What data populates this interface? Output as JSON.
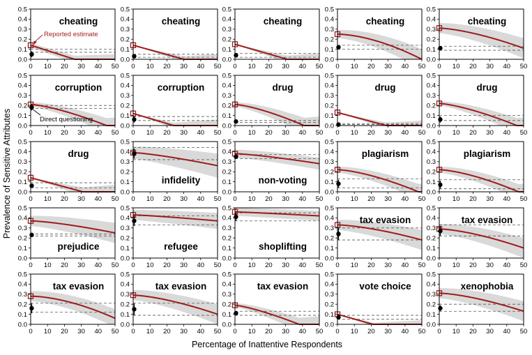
{
  "figure": {
    "xlabel": "Percentage of Inattentive Respondents",
    "ylabel": "Prevalence of Sensitive Attributes"
  },
  "colors": {
    "curve": "#9e1b1b",
    "band": "#d9d9d9",
    "dashed": "#555555",
    "direct": "#000000"
  },
  "chart_data": {
    "type": "line",
    "layout": "grid 5 rows x 5 columns",
    "x_axis": {
      "range": [
        0,
        50
      ],
      "ticks": [
        0,
        10,
        20,
        30,
        40,
        50
      ]
    },
    "y_axis": {
      "range": [
        0,
        0.5
      ],
      "ticks": [
        "0.0",
        "0.1",
        "0.2",
        "0.3",
        "0.4",
        "0.5"
      ]
    },
    "annotations": {
      "reported": "Reported estimate",
      "direct": "Direct questioning"
    },
    "panels": [
      {
        "title": "cheating",
        "title_pos": "top",
        "reported": 0.14,
        "zero_at": 26,
        "curve_exp": 1.0,
        "end_value": 0.0,
        "band_lo": 0.02,
        "band_hi": 0.05,
        "direct": 0.05,
        "direct_err": 0.03,
        "dashed": [
          0.1,
          0.07
        ]
      },
      {
        "title": "cheating",
        "title_pos": "top",
        "reported": 0.14,
        "zero_at": 30,
        "curve_exp": 1.0,
        "end_value": 0.0,
        "band_lo": 0.0,
        "band_hi": 0.05,
        "direct": 0.03,
        "direct_err": 0.01,
        "dashed": [
          0.05,
          0.02
        ]
      },
      {
        "title": "cheating",
        "title_pos": "top",
        "reported": 0.15,
        "zero_at": 31,
        "curve_exp": 1.0,
        "end_value": 0.0,
        "band_lo": 0.0,
        "band_hi": 0.06,
        "direct": 0.04,
        "direct_err": 0.01,
        "dashed": [
          0.06,
          0.02
        ]
      },
      {
        "title": "cheating",
        "title_pos": "top",
        "reported": 0.25,
        "zero_at": null,
        "curve_exp": 1.7,
        "end_value": 0.0,
        "band_lo": 0.04,
        "band_hi": 0.1,
        "direct": 0.12,
        "direct_err": 0.02,
        "dashed": [
          0.14,
          0.1
        ]
      },
      {
        "title": "cheating",
        "title_pos": "top",
        "reported": 0.31,
        "zero_at": null,
        "curve_exp": 1.5,
        "end_value": 0.11,
        "band_lo": 0.05,
        "band_hi": 0.1,
        "direct": 0.11,
        "direct_err": 0.02,
        "dashed": [
          0.13,
          0.09
        ]
      },
      {
        "title": "corruption",
        "title_pos": "top",
        "reported": 0.21,
        "zero_at": 45,
        "curve_exp": 1.4,
        "end_value": 0.0,
        "band_lo": 0.02,
        "band_hi": 0.08,
        "direct": 0.18,
        "direct_err": 0.03,
        "dashed": [
          0.2,
          0.17
        ]
      },
      {
        "title": "corruption",
        "title_pos": "top",
        "reported": 0.12,
        "zero_at": 24,
        "curve_exp": 1.0,
        "end_value": 0.0,
        "band_lo": 0.0,
        "band_hi": 0.06,
        "direct": 0.06,
        "direct_err": 0.03,
        "dashed": [
          0.09,
          0.05
        ]
      },
      {
        "title": "drug",
        "title_pos": "top",
        "reported": 0.21,
        "zero_at": 41,
        "curve_exp": 1.4,
        "end_value": 0.0,
        "band_lo": 0.02,
        "band_hi": 0.09,
        "direct": 0.04,
        "direct_err": 0.01,
        "dashed": [
          0.05,
          0.03
        ]
      },
      {
        "title": "drug",
        "title_pos": "top",
        "reported": 0.13,
        "zero_at": 29,
        "curve_exp": 1.0,
        "end_value": 0.0,
        "band_lo": 0.0,
        "band_hi": 0.05,
        "direct": 0.01,
        "direct_err": 0.01,
        "dashed": [
          0.02,
          0.01
        ]
      },
      {
        "title": "drug",
        "title_pos": "top",
        "reported": 0.22,
        "zero_at": 46,
        "curve_exp": 1.4,
        "end_value": 0.0,
        "band_lo": 0.02,
        "band_hi": 0.08,
        "direct": 0.06,
        "direct_err": 0.03,
        "dashed": [
          0.1,
          0.05
        ]
      },
      {
        "title": "drug",
        "title_pos": "top",
        "reported": 0.14,
        "zero_at": 31,
        "curve_exp": 1.0,
        "end_value": 0.0,
        "band_lo": 0.0,
        "band_hi": 0.07,
        "direct": 0.06,
        "direct_err": 0.02,
        "dashed": [
          0.09,
          0.04
        ]
      },
      {
        "title": "infidelity",
        "title_pos": "bottom",
        "reported": 0.39,
        "zero_at": null,
        "curve_exp": 1.3,
        "end_value": 0.26,
        "band_lo": 0.06,
        "band_hi": 0.12,
        "direct": 0.38,
        "direct_err": 0.05,
        "dashed": [
          0.44,
          0.32
        ]
      },
      {
        "title": "non-voting",
        "title_pos": "bottom",
        "reported": 0.38,
        "zero_at": null,
        "curve_exp": 1.3,
        "end_value": 0.28,
        "band_lo": 0.04,
        "band_hi": 0.06,
        "direct": 0.35,
        "direct_err": 0.02,
        "dashed": [
          0.37,
          0.33
        ]
      },
      {
        "title": "plagiarism",
        "title_pos": "top",
        "reported": 0.22,
        "zero_at": 48,
        "curve_exp": 1.5,
        "end_value": 0.0,
        "band_lo": 0.03,
        "band_hi": 0.08,
        "direct": 0.08,
        "direct_err": 0.04,
        "dashed": [
          0.13,
          0.04
        ]
      },
      {
        "title": "plagiarism",
        "title_pos": "top",
        "reported": 0.22,
        "zero_at": 47,
        "curve_exp": 1.5,
        "end_value": 0.0,
        "band_lo": 0.03,
        "band_hi": 0.08,
        "direct": 0.07,
        "direct_err": 0.04,
        "dashed": [
          0.12,
          0.03
        ]
      },
      {
        "title": "prejudice",
        "title_pos": "bottom",
        "reported": 0.37,
        "zero_at": null,
        "curve_exp": 1.4,
        "end_value": 0.25,
        "band_lo": 0.05,
        "band_hi": 0.1,
        "direct": 0.23,
        "direct_err": 0.01,
        "dashed": [
          0.24,
          0.22
        ]
      },
      {
        "title": "refugee",
        "title_pos": "bottom",
        "reported": 0.43,
        "zero_at": null,
        "curve_exp": 1.2,
        "end_value": 0.37,
        "band_lo": 0.05,
        "band_hi": 0.08,
        "direct": 0.37,
        "direct_err": 0.05,
        "dashed": [
          0.42,
          0.33
        ]
      },
      {
        "title": "shoplifting",
        "title_pos": "bottom",
        "reported": 0.46,
        "zero_at": null,
        "curve_exp": 1.1,
        "end_value": 0.42,
        "band_lo": 0.04,
        "band_hi": 0.05,
        "direct": 0.41,
        "direct_err": 0.04,
        "dashed": [
          0.45,
          0.37
        ]
      },
      {
        "title": "tax evasion",
        "title_pos": "top",
        "reported": 0.33,
        "zero_at": null,
        "curve_exp": 1.5,
        "end_value": 0.18,
        "band_lo": 0.05,
        "band_hi": 0.1,
        "direct": 0.24,
        "direct_err": 0.06,
        "dashed": [
          0.3,
          0.18
        ]
      },
      {
        "title": "tax evasion",
        "title_pos": "top",
        "reported": 0.29,
        "zero_at": null,
        "curve_exp": 1.5,
        "end_value": 0.1,
        "band_lo": 0.05,
        "band_hi": 0.1,
        "direct": 0.27,
        "direct_err": 0.05,
        "dashed": [
          0.33,
          0.22
        ]
      },
      {
        "title": "tax evasion",
        "title_pos": "top",
        "reported": 0.28,
        "zero_at": null,
        "curve_exp": 1.7,
        "end_value": 0.06,
        "band_lo": 0.05,
        "band_hi": 0.09,
        "direct": 0.16,
        "direct_err": 0.05,
        "dashed": [
          0.21,
          0.12
        ]
      },
      {
        "title": "tax evasion",
        "title_pos": "top",
        "reported": 0.29,
        "zero_at": null,
        "curve_exp": 1.5,
        "end_value": 0.1,
        "band_lo": 0.05,
        "band_hi": 0.1,
        "direct": 0.15,
        "direct_err": 0.06,
        "dashed": [
          0.21,
          0.09
        ]
      },
      {
        "title": "tax evasion",
        "title_pos": "top",
        "reported": 0.19,
        "zero_at": 38,
        "curve_exp": 1.3,
        "end_value": 0.0,
        "band_lo": 0.02,
        "band_hi": 0.08,
        "direct": 0.11,
        "direct_err": 0.02,
        "dashed": [
          0.13,
          0.09
        ]
      },
      {
        "title": "vote choice",
        "title_pos": "top",
        "reported": 0.1,
        "zero_at": 21,
        "curve_exp": 1.0,
        "end_value": 0.0,
        "band_lo": 0.0,
        "band_hi": 0.04,
        "direct": 0.07,
        "direct_err": 0.01,
        "dashed": [
          0.09,
          0.05
        ]
      },
      {
        "title": "xenophobia",
        "title_pos": "top",
        "reported": 0.31,
        "zero_at": null,
        "curve_exp": 1.5,
        "end_value": 0.13,
        "band_lo": 0.05,
        "band_hi": 0.1,
        "direct": 0.16,
        "direct_err": 0.03,
        "dashed": [
          0.2,
          0.13
        ]
      }
    ]
  }
}
